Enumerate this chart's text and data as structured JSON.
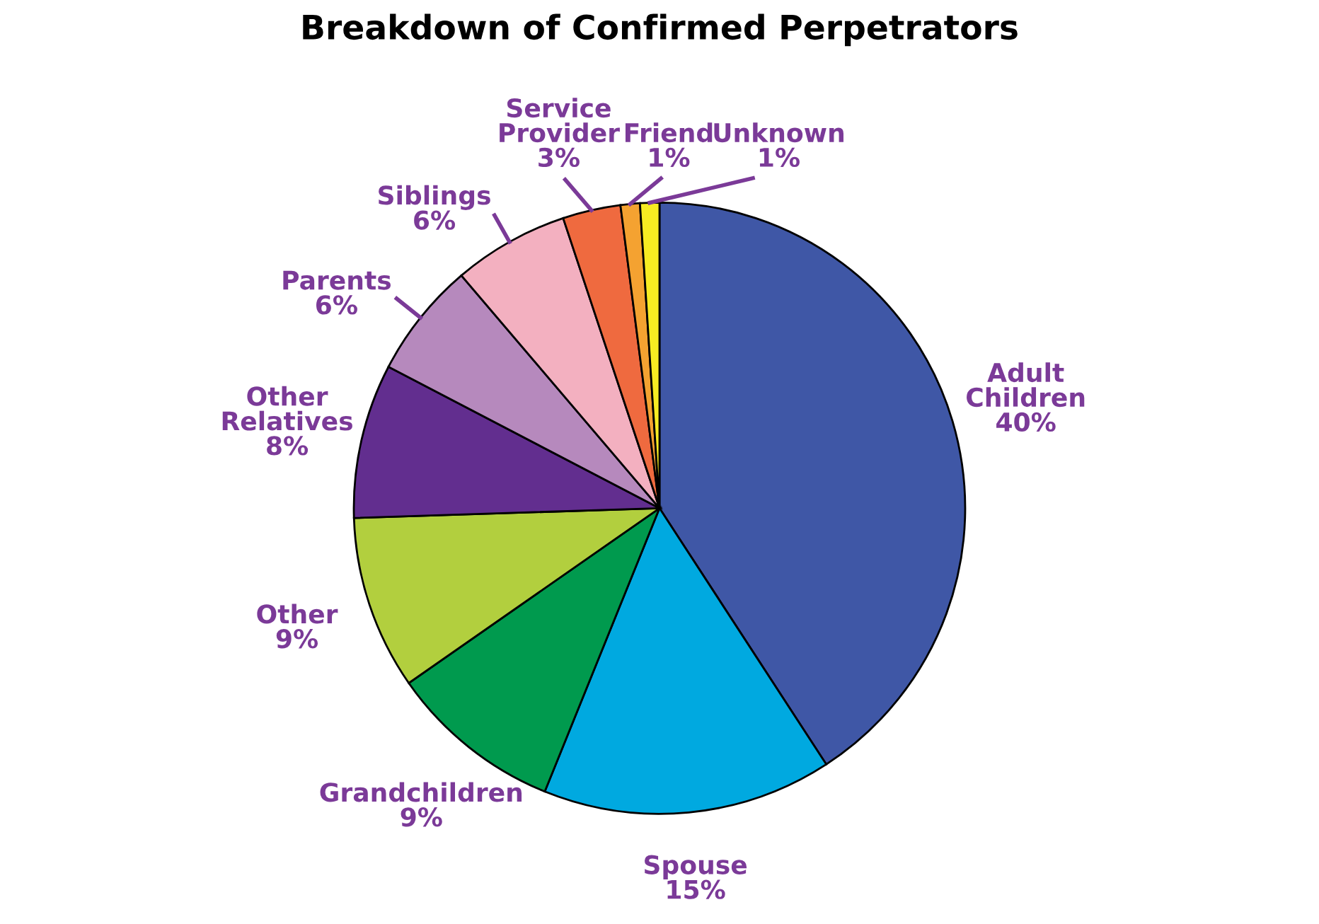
{
  "chart_data": {
    "type": "pie",
    "title": "Breakdown of Confirmed Perpetrators",
    "categories": [
      "Adult Children",
      "Spouse",
      "Grandchildren",
      "Other",
      "Other Relatives",
      "Parents",
      "Siblings",
      "Service Provider",
      "Friend",
      "Unknown"
    ],
    "values": [
      40,
      15,
      9,
      9,
      8,
      6,
      6,
      3,
      1,
      1
    ],
    "colors": [
      "#3f57a6",
      "#00a9e0",
      "#009a4e",
      "#b2cf3e",
      "#622e8f",
      "#b689bd",
      "#f3b0c0",
      "#ef6a3f",
      "#f4a231",
      "#f7ec22"
    ],
    "value_labels": [
      "40%",
      "15%",
      "9%",
      "9%",
      "8%",
      "6%",
      "6%",
      "3%",
      "1%",
      "1%"
    ]
  }
}
